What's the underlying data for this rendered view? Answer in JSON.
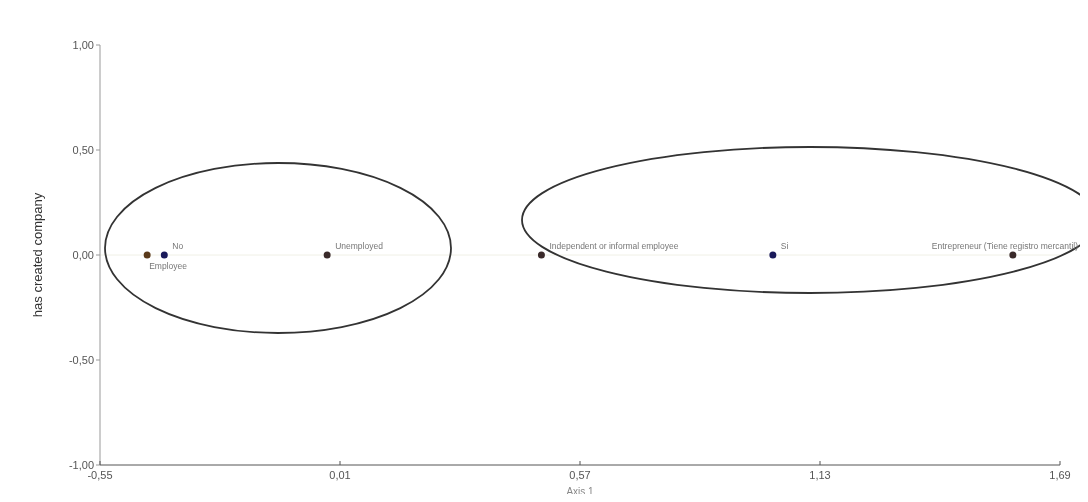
{
  "chart_data": {
    "type": "scatter",
    "xlabel": "Axis 1",
    "ylabel": "has created company",
    "xlim": [
      -0.55,
      1.69
    ],
    "ylim": [
      -1,
      1
    ],
    "xticks": [
      {
        "value": -0.55,
        "label": "-0,55"
      },
      {
        "value": 0.01,
        "label": "0,01"
      },
      {
        "value": 0.57,
        "label": "0,57"
      },
      {
        "value": 1.13,
        "label": "1,13"
      },
      {
        "value": 1.69,
        "label": "1,69"
      }
    ],
    "yticks": [
      {
        "value": -1,
        "label": "-1,00"
      },
      {
        "value": -0.5,
        "label": "-0,50"
      },
      {
        "value": 0,
        "label": "0,00"
      },
      {
        "value": 0.5,
        "label": "0,50"
      },
      {
        "value": 1,
        "label": "1,00"
      }
    ],
    "series": [
      {
        "x": [
          -0.44,
          -0.4,
          -0.02,
          0.48,
          1.02,
          1.58
        ],
        "values": [
          0,
          0,
          0,
          0,
          0,
          0
        ],
        "colors": [
          "#5a3a1a",
          "#1a1a5a",
          "#3a2a2a",
          "#3a2a2a",
          "#1a1a5a",
          "#3a2a2a"
        ]
      }
    ],
    "marker": "circle",
    "grid": false,
    "ref_lines": [
      {
        "axis": "y",
        "value": 0,
        "color": "#f0f0e6"
      }
    ],
    "annotations": [
      {
        "text": "Employee",
        "x": -0.44,
        "y": 0
      },
      {
        "text": "No",
        "x": -0.4,
        "y": 0
      },
      {
        "text": "Unemployed",
        "x": -0.02,
        "y": 0
      },
      {
        "text": "Independent or informal employee",
        "x": 0.48,
        "y": 0
      },
      {
        "text": "Si",
        "x": 1.02,
        "y": 0
      },
      {
        "text": "Entrepreneur (Tiene registro mercantil)",
        "x": 1.58,
        "y": 0
      }
    ]
  }
}
